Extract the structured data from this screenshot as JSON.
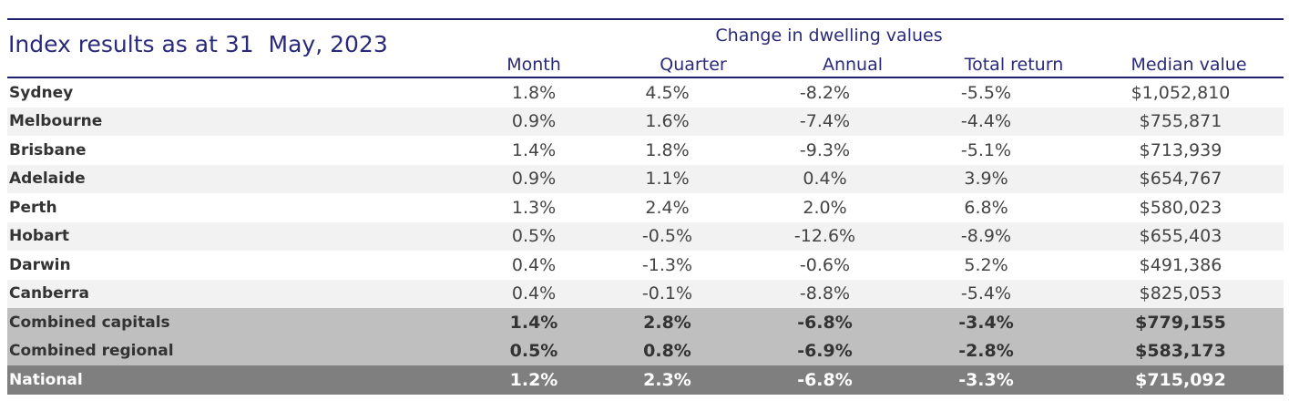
{
  "title": "Index results as at 31  May, 2023",
  "group_header": "Change in dwelling values",
  "columns": [
    "Month",
    "Quarter",
    "Annual",
    "Total return",
    "Median value"
  ],
  "rows": [
    {
      "name": "Sydney",
      "month": "1.8%",
      "quarter": "4.5%",
      "annual": "-8.2%",
      "total": "-5.5%",
      "median": "$1,052,810"
    },
    {
      "name": "Melbourne",
      "month": "0.9%",
      "quarter": "1.6%",
      "annual": "-7.4%",
      "total": "-4.4%",
      "median": "$755,871"
    },
    {
      "name": "Brisbane",
      "month": "1.4%",
      "quarter": "1.8%",
      "annual": "-9.3%",
      "total": "-5.1%",
      "median": "$713,939"
    },
    {
      "name": "Adelaide",
      "month": "0.9%",
      "quarter": "1.1%",
      "annual": "0.4%",
      "total": "3.9%",
      "median": "$654,767"
    },
    {
      "name": "Perth",
      "month": "1.3%",
      "quarter": "2.4%",
      "annual": "2.0%",
      "total": "6.8%",
      "median": "$580,023"
    },
    {
      "name": "Hobart",
      "month": "0.5%",
      "quarter": "-0.5%",
      "annual": "-12.6%",
      "total": "-8.9%",
      "median": "$655,403"
    },
    {
      "name": "Darwin",
      "month": "0.4%",
      "quarter": "-1.3%",
      "annual": "-0.6%",
      "total": "5.2%",
      "median": "$491,386"
    },
    {
      "name": "Canberra",
      "month": "0.4%",
      "quarter": "-0.1%",
      "annual": "-8.8%",
      "total": "-5.4%",
      "median": "$825,053"
    },
    {
      "name": "Combined capitals",
      "month": "1.4%",
      "quarter": "2.8%",
      "annual": "-6.8%",
      "total": "-3.4%",
      "median": "$779,155"
    },
    {
      "name": "Combined regional",
      "month": "0.5%",
      "quarter": "0.8%",
      "annual": "-6.9%",
      "total": "-2.8%",
      "median": "$583,173"
    },
    {
      "name": "National",
      "month": "1.2%",
      "quarter": "2.3%",
      "annual": "-6.8%",
      "total": "-3.3%",
      "median": "$715,092"
    }
  ],
  "colors": {
    "header_text": "#2a2a7a",
    "rule": "#1f1f6b",
    "alt_row": "#f2f2f2",
    "combined_row": "#bfbfbf",
    "national_row": "#7f7f7f"
  }
}
